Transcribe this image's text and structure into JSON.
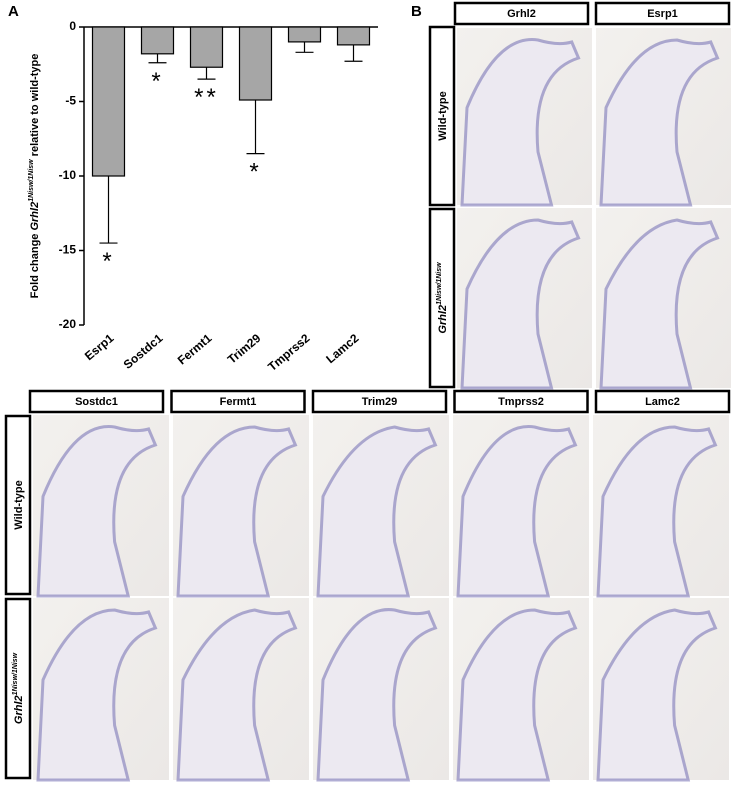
{
  "chart_data": {
    "type": "bar",
    "panel": "A",
    "y_label": {
      "prefix": "Fold change ",
      "gene": "Grhl2",
      "superscript": "1Nisw/1Nisw",
      "suffix": " relative to wild-type"
    },
    "categories": [
      "Esrp1",
      "Sostdc1",
      "Fermt1",
      "Trim29",
      "Tmprss2",
      "Lamc2"
    ],
    "values": [
      -10,
      -1.8,
      -2.7,
      -4.9,
      -1,
      -1.2
    ],
    "errors": [
      4.5,
      0.6,
      0.8,
      3.6,
      0.7,
      1.1
    ],
    "color": "#a6a6a6",
    "ylim": [
      -20,
      0
    ],
    "yticks": [
      -20,
      -15,
      -10,
      -5,
      0
    ],
    "annotations": [
      {
        "category": "Esrp1",
        "text": "*"
      },
      {
        "category": "Sostdc1",
        "text": "*"
      },
      {
        "category": "Fermt1",
        "text": "**"
      },
      {
        "category": "Trim29",
        "text": "*"
      }
    ]
  },
  "row_labels": [
    {
      "text": "Wild-type"
    },
    {
      "gene": "Grhl2",
      "superscript": "1Nisw/1Nisw"
    }
  ],
  "panel_b": {
    "label": "B",
    "columns": [
      "Grhl2",
      "Esrp1"
    ]
  },
  "panel_c": {
    "columns": [
      "Sostdc1",
      "Fermt1",
      "Trim29",
      "Tmprss2",
      "Lamc2"
    ]
  }
}
